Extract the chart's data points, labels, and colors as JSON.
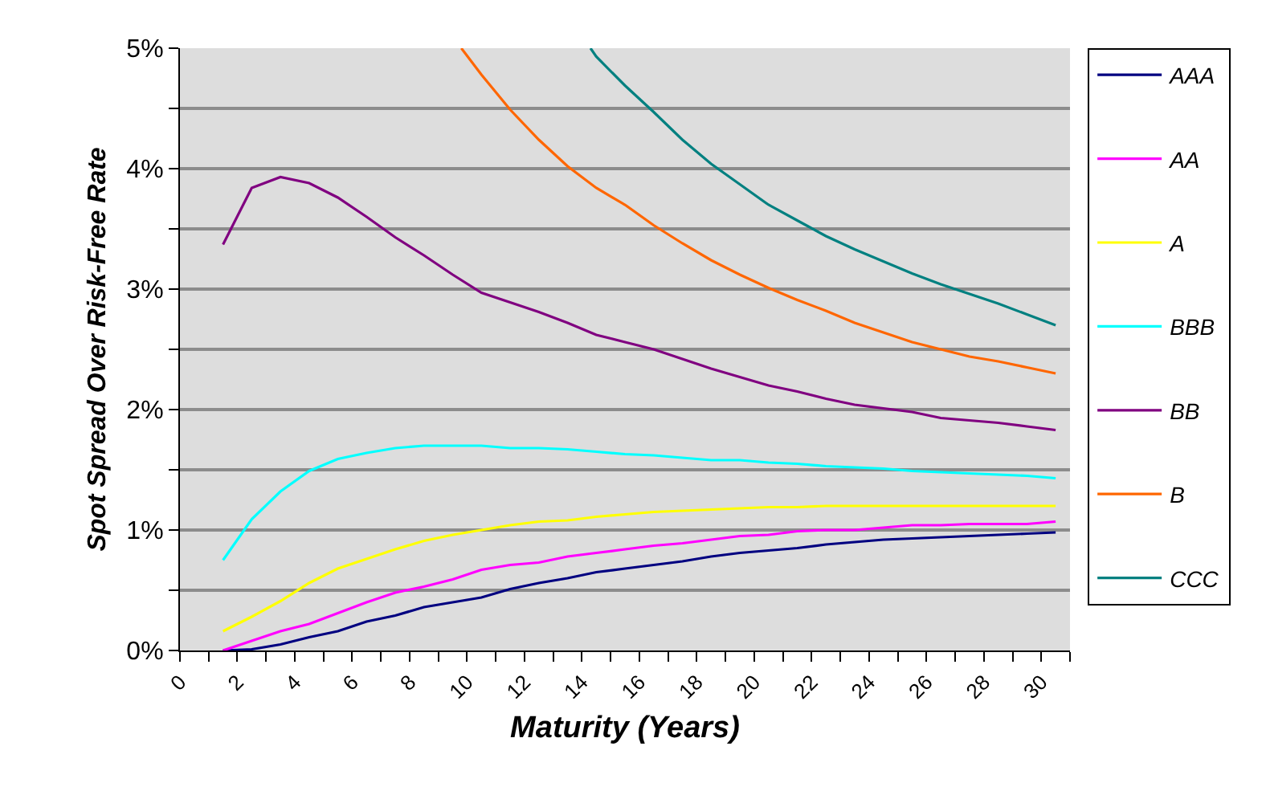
{
  "chart_data": {
    "type": "line",
    "xlabel": "Maturity (Years)",
    "ylabel": "Spot Spread Over Risk-Free Rate",
    "x": [
      1.5,
      2.5,
      3.5,
      4.5,
      5.5,
      6.5,
      7.5,
      8.5,
      9.5,
      10.5,
      11.5,
      12.5,
      13.5,
      14.5,
      15.5,
      16.5,
      17.5,
      18.5,
      19.5,
      20.5,
      21.5,
      22.5,
      23.5,
      24.5,
      25.5,
      26.5,
      27.5,
      28.5,
      29.5,
      30.5
    ],
    "series": [
      {
        "name": "AAA",
        "color": "#000080",
        "values": [
          0.0,
          0.01,
          0.05,
          0.11,
          0.16,
          0.24,
          0.29,
          0.36,
          0.4,
          0.44,
          0.51,
          0.56,
          0.6,
          0.65,
          0.68,
          0.71,
          0.74,
          0.78,
          0.81,
          0.83,
          0.85,
          0.88,
          0.9,
          0.92,
          0.93,
          0.94,
          0.95,
          0.96,
          0.97,
          0.98
        ]
      },
      {
        "name": "AA",
        "color": "#ff00ff",
        "values": [
          0.0,
          0.08,
          0.16,
          0.22,
          0.31,
          0.4,
          0.48,
          0.53,
          0.59,
          0.67,
          0.71,
          0.73,
          0.78,
          0.81,
          0.84,
          0.87,
          0.89,
          0.92,
          0.95,
          0.96,
          0.99,
          1.0,
          1.0,
          1.02,
          1.04,
          1.04,
          1.05,
          1.05,
          1.05,
          1.07
        ]
      },
      {
        "name": "A",
        "color": "#ffff00",
        "values": [
          0.16,
          0.28,
          0.41,
          0.56,
          0.68,
          0.76,
          0.84,
          0.91,
          0.96,
          1.0,
          1.04,
          1.07,
          1.08,
          1.11,
          1.13,
          1.15,
          1.16,
          1.17,
          1.18,
          1.19,
          1.19,
          1.2,
          1.2,
          1.2,
          1.2,
          1.2,
          1.2,
          1.2,
          1.2,
          1.2
        ]
      },
      {
        "name": "BBB",
        "color": "#00ffff",
        "values": [
          0.75,
          1.09,
          1.32,
          1.49,
          1.59,
          1.64,
          1.68,
          1.7,
          1.7,
          1.7,
          1.68,
          1.68,
          1.67,
          1.65,
          1.63,
          1.62,
          1.6,
          1.58,
          1.58,
          1.56,
          1.55,
          1.53,
          1.52,
          1.51,
          1.49,
          1.48,
          1.47,
          1.46,
          1.45,
          1.43
        ]
      },
      {
        "name": "BB",
        "color": "#800080",
        "values": [
          3.37,
          3.84,
          3.93,
          3.88,
          3.76,
          3.6,
          3.43,
          3.28,
          3.12,
          2.97,
          2.89,
          2.81,
          2.72,
          2.62,
          2.56,
          2.5,
          2.42,
          2.34,
          2.27,
          2.2,
          2.15,
          2.09,
          2.04,
          2.01,
          1.98,
          1.93,
          1.91,
          1.89,
          1.86,
          1.83
        ]
      },
      {
        "name": "B",
        "color": "#ff6600",
        "x": [
          9.8,
          10.5,
          11.5,
          12.5,
          13.5,
          14.5,
          15.5,
          16.5,
          17.5,
          18.5,
          19.5,
          20.5,
          21.5,
          22.5,
          23.5,
          24.5,
          25.5,
          26.5,
          27.5,
          28.5,
          29.5,
          30.5
        ],
        "values": [
          5.0,
          4.78,
          4.49,
          4.24,
          4.02,
          3.84,
          3.7,
          3.53,
          3.38,
          3.24,
          3.12,
          3.01,
          2.91,
          2.82,
          2.72,
          2.64,
          2.56,
          2.5,
          2.44,
          2.4,
          2.35,
          2.3
        ]
      },
      {
        "name": "CCC",
        "color": "#008080",
        "x": [
          14.3,
          14.5,
          15.5,
          16.5,
          17.5,
          18.5,
          19.5,
          20.5,
          21.5,
          22.5,
          23.5,
          24.5,
          25.5,
          26.5,
          27.5,
          28.5,
          29.5,
          30.5
        ],
        "values": [
          5.0,
          4.93,
          4.69,
          4.47,
          4.24,
          4.04,
          3.87,
          3.7,
          3.57,
          3.44,
          3.33,
          3.23,
          3.13,
          3.04,
          2.96,
          2.88,
          2.79,
          2.7
        ]
      }
    ],
    "xlim": [
      0,
      31
    ],
    "xticks": [
      0,
      {
        "value": 1,
        "label": null
      },
      2,
      {
        "value": 3,
        "label": null
      },
      4,
      {
        "value": 5,
        "label": null
      },
      6,
      {
        "value": 7,
        "label": null
      },
      8,
      {
        "value": 9,
        "label": null
      },
      10,
      {
        "value": 11,
        "label": null
      },
      12,
      {
        "value": 13,
        "label": null
      },
      14,
      {
        "value": 15,
        "label": null
      },
      16,
      {
        "value": 17,
        "label": null
      },
      18,
      {
        "value": 19,
        "label": null
      },
      20,
      {
        "value": 21,
        "label": null
      },
      22,
      {
        "value": 23,
        "label": null
      },
      24,
      {
        "value": 25,
        "label": null
      },
      26,
      {
        "value": 27,
        "label": null
      },
      28,
      {
        "value": 29,
        "label": null
      },
      30,
      {
        "value": 31,
        "label": null
      }
    ],
    "ylim": [
      0,
      5
    ],
    "yticks": [
      {
        "value": 0,
        "label": "0%"
      },
      {
        "value": 0.5,
        "label": null
      },
      {
        "value": 1,
        "label": "1%"
      },
      {
        "value": 1.5,
        "label": null
      },
      {
        "value": 2,
        "label": "2%"
      },
      {
        "value": 2.5,
        "label": null
      },
      {
        "value": 3,
        "label": "3%"
      },
      {
        "value": 3.5,
        "label": null
      },
      {
        "value": 4,
        "label": "4%"
      },
      {
        "value": 4.5,
        "label": null
      },
      {
        "value": 5,
        "label": "5%"
      }
    ],
    "grid": "y",
    "legend": "right",
    "marker": "none",
    "line_style": "solid"
  }
}
